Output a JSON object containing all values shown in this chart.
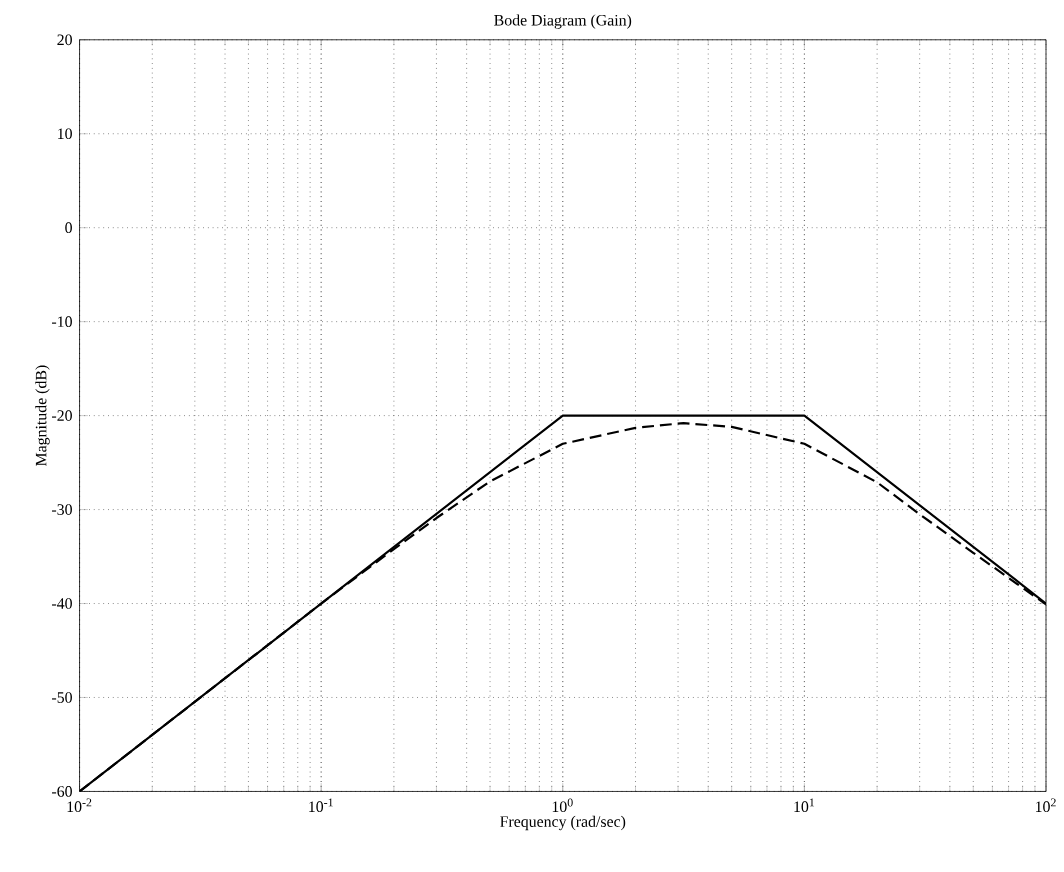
{
  "chart_data": {
    "type": "line",
    "title": "Bode Diagram (Gain)",
    "xlabel": "Frequency (rad/sec)",
    "ylabel": "Magnitude (dB)",
    "log": "x",
    "grid": true,
    "marker": "none",
    "xlim": [
      0.01,
      100
    ],
    "ylim": [
      -60,
      20
    ],
    "xticks": [
      {
        "value": 0.01,
        "label": "10$^{-2}$"
      },
      {
        "value": 0.1,
        "label": "10$^{-1}$"
      },
      {
        "value": 1,
        "label": "10$^{0}$"
      },
      {
        "value": 10,
        "label": "10$^{1}$"
      },
      {
        "value": 100,
        "label": "10$^{2}$"
      }
    ],
    "yticks": [
      -60,
      -50,
      -40,
      -30,
      -20,
      -10,
      0,
      10,
      20
    ],
    "series": [
      {
        "color": "#000000",
        "line_style": "dashed",
        "x": [
          0.01,
          0.1,
          0.2,
          0.3,
          0.5,
          1,
          2,
          3.16,
          5,
          10,
          20,
          30,
          50,
          100
        ],
        "values": [
          -60,
          -40,
          -34.2,
          -30.9,
          -27,
          -23,
          -21.3,
          -20.8,
          -21.2,
          -23,
          -27.1,
          -30.5,
          -34.6,
          -40.1
        ]
      },
      {
        "color": "#000000",
        "line_style": "solid",
        "x": [
          0.01,
          1,
          10,
          100
        ],
        "values": [
          -60,
          -20,
          -20,
          -40
        ]
      }
    ]
  }
}
